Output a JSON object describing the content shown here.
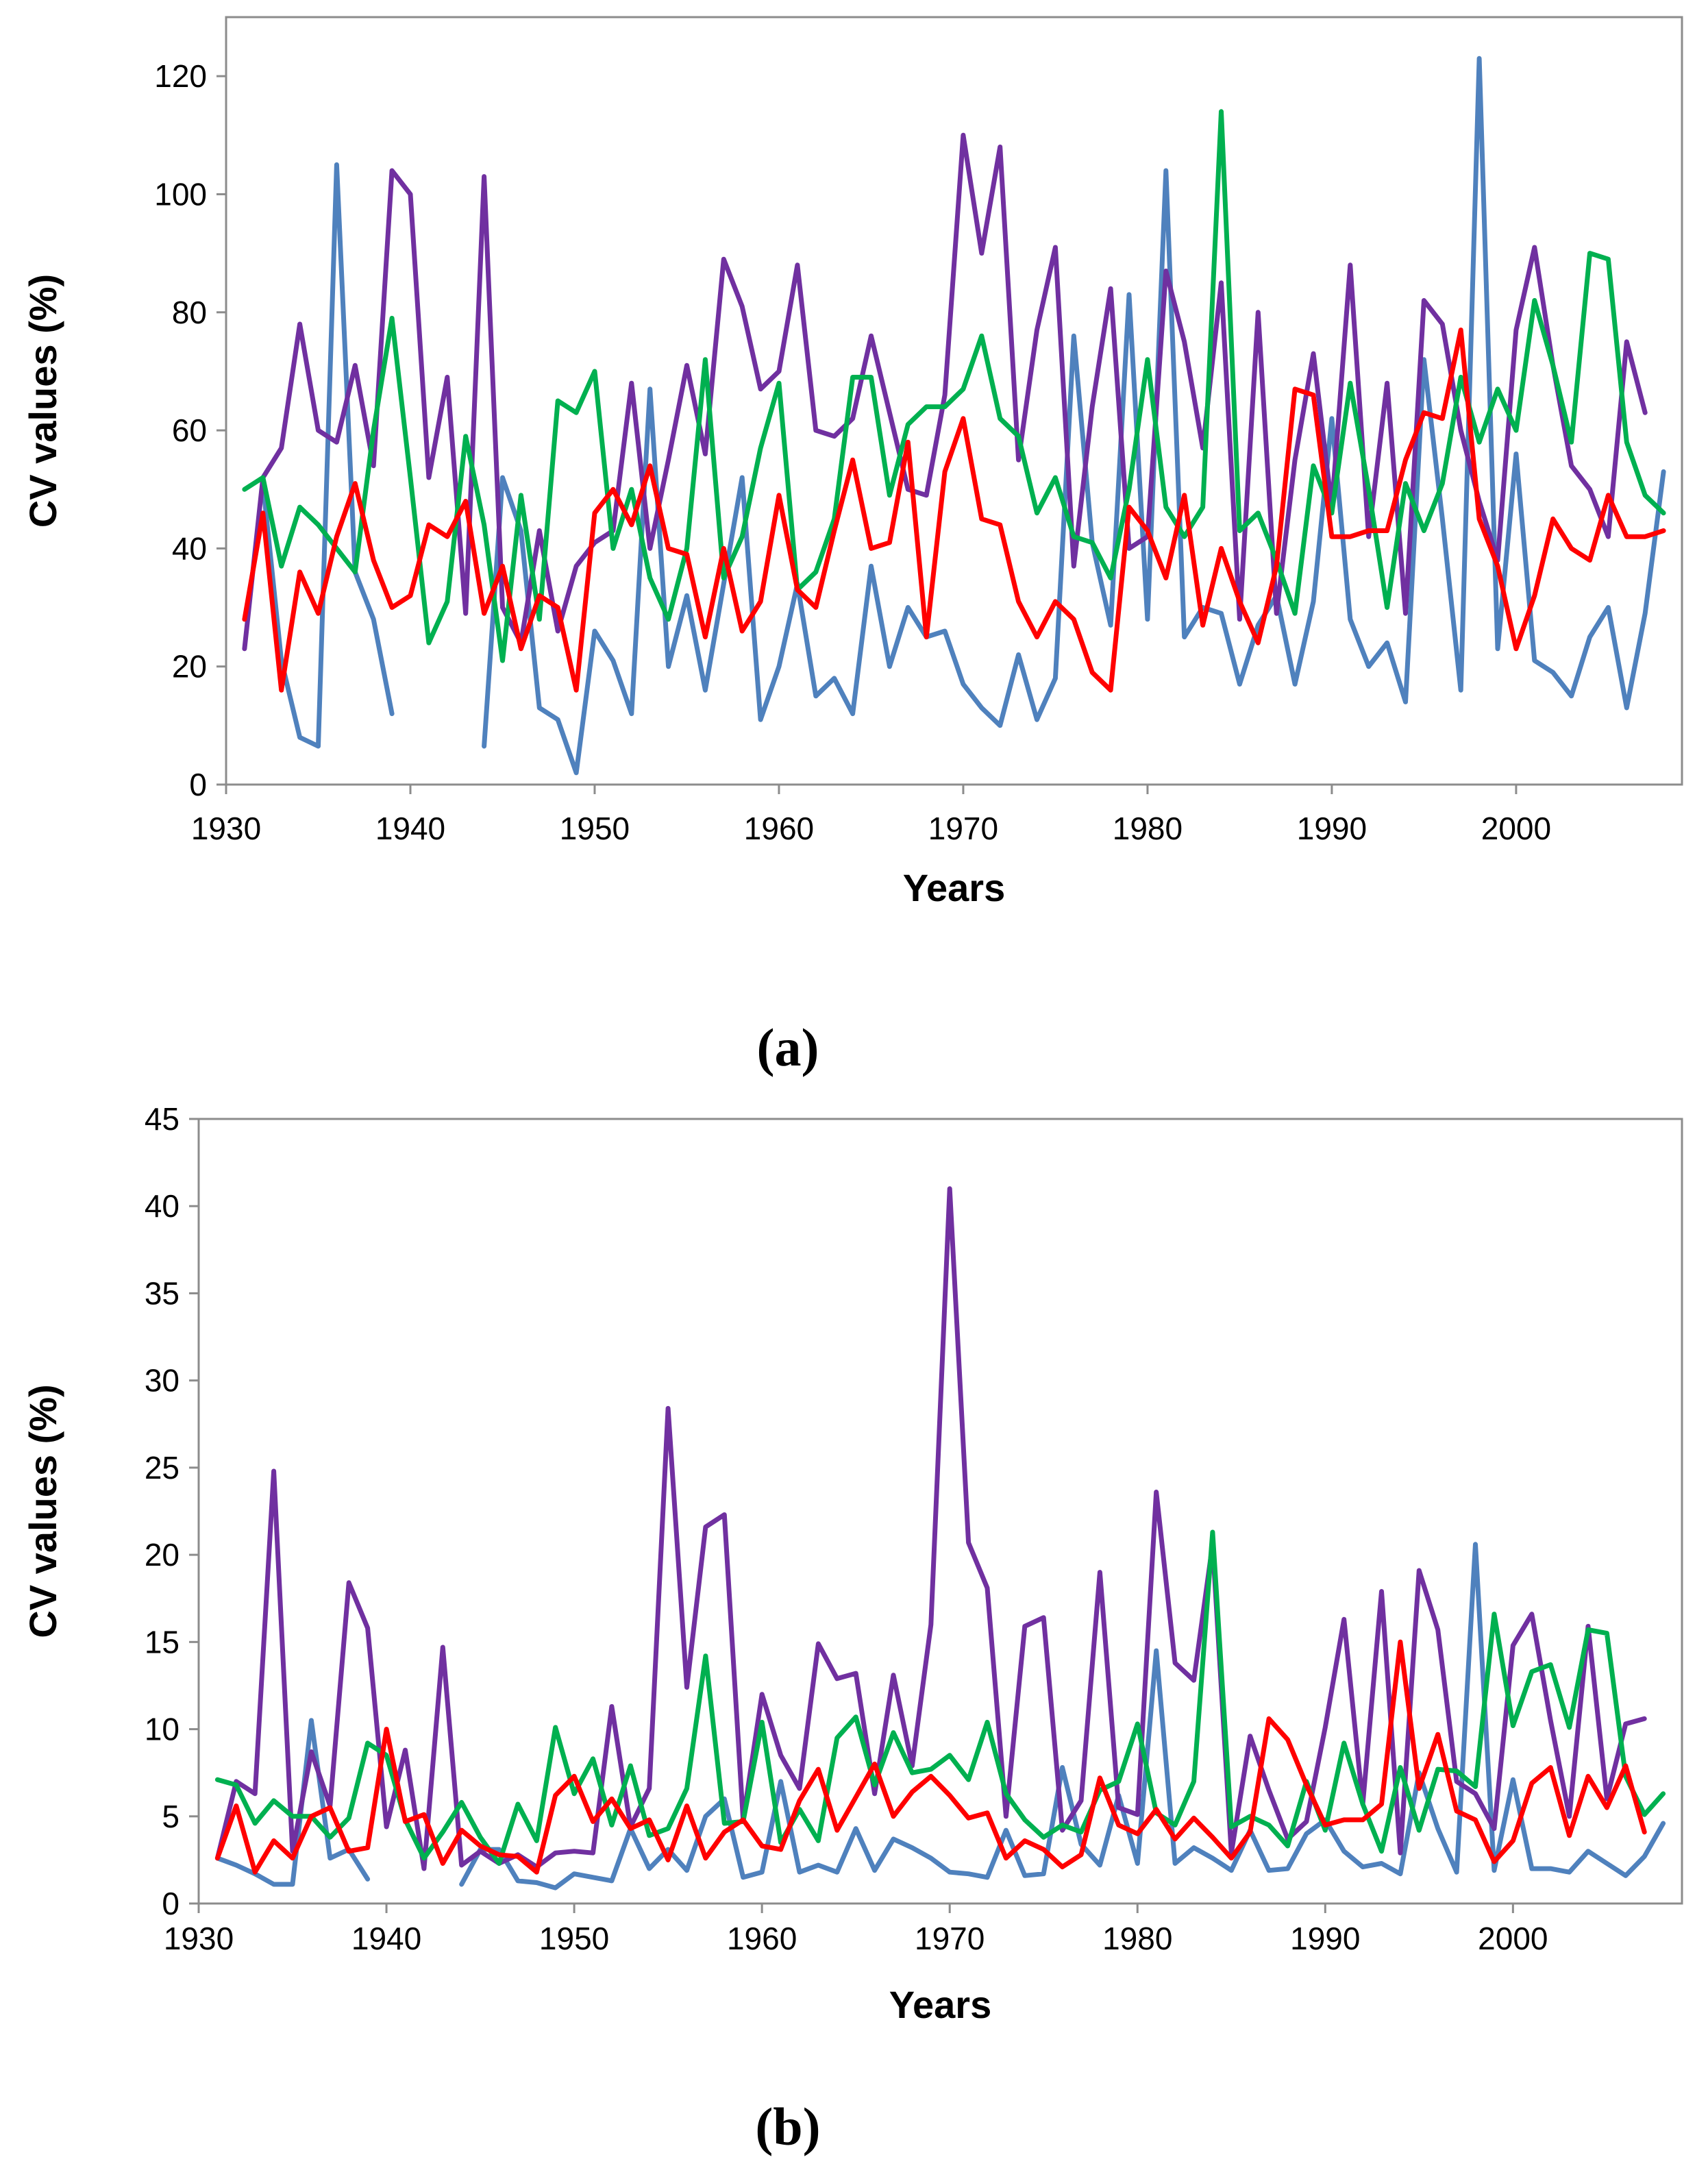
{
  "chart_data": [
    {
      "type": "line",
      "panel_label": "(a)",
      "xlabel": "Years",
      "ylabel": "CV values (%)",
      "xlim": [
        1930,
        2009
      ],
      "ylim": [
        0,
        130
      ],
      "x_ticks": [
        1930,
        1940,
        1950,
        1960,
        1970,
        1980,
        1990,
        2000
      ],
      "y_ticks": [
        0,
        20,
        40,
        60,
        80,
        100,
        120
      ],
      "x_start": 1931,
      "series": [
        {
          "name": "blue",
          "color": "#4f81bd",
          "values": [
            null,
            51,
            21,
            8,
            6.5,
            105,
            36,
            28,
            12,
            null,
            null,
            null,
            null,
            6.5,
            52,
            43,
            13,
            11,
            2,
            26,
            21,
            12,
            67,
            20,
            32,
            16,
            34,
            52,
            11,
            20,
            34,
            15,
            18,
            12,
            37,
            20,
            30,
            25,
            26,
            17,
            13,
            10,
            22,
            11,
            18,
            76,
            41,
            27,
            83,
            28,
            104,
            25,
            30,
            29,
            17,
            27,
            32,
            17,
            31,
            62,
            28,
            20,
            24,
            14,
            72,
            45,
            16,
            123,
            23,
            56,
            21,
            19,
            15,
            25,
            30,
            13,
            29,
            53
          ]
        },
        {
          "name": "purple",
          "color": "#7030a0",
          "values": [
            23,
            52,
            57,
            78,
            60,
            58,
            71,
            54,
            104,
            100,
            52,
            69,
            29,
            103,
            30,
            24,
            43,
            26,
            37,
            41,
            43,
            68,
            40,
            55,
            71,
            56,
            89,
            81,
            67,
            70,
            88,
            60,
            59,
            62,
            76,
            63,
            50,
            49,
            66,
            110,
            90,
            108,
            55,
            77,
            91,
            37,
            64,
            84,
            40,
            42,
            87,
            75,
            57,
            85,
            28,
            80,
            29,
            55,
            73,
            47,
            88,
            42,
            68,
            29,
            82,
            78,
            60,
            48,
            38,
            77,
            91,
            71,
            54,
            50,
            42,
            75,
            63
          ]
        },
        {
          "name": "green",
          "color": "#00b050",
          "values": [
            50,
            52,
            37,
            47,
            44,
            40,
            36,
            60,
            79,
            52,
            24,
            31,
            59,
            44,
            21,
            49,
            28,
            65,
            63,
            70,
            40,
            50,
            35,
            28,
            40,
            72,
            35,
            42,
            57,
            68,
            33,
            36,
            45,
            69,
            69,
            49,
            61,
            64,
            64,
            67,
            76,
            62,
            59,
            46,
            52,
            42,
            41,
            35,
            50,
            72,
            47,
            42,
            47,
            114,
            43,
            46,
            38,
            29,
            54,
            46,
            68,
            50,
            30,
            51,
            43,
            51,
            69,
            58,
            67,
            60,
            82,
            71,
            58,
            90,
            89,
            58,
            49,
            46
          ]
        },
        {
          "name": "red",
          "color": "#ff0000",
          "values": [
            28,
            46,
            16,
            36,
            29,
            42,
            51,
            38,
            30,
            32,
            44,
            42,
            48,
            29,
            37,
            23,
            32,
            30,
            16,
            46,
            50,
            44,
            54,
            40,
            39,
            25,
            40,
            26,
            31,
            49,
            33,
            30,
            43,
            55,
            40,
            41,
            58,
            25,
            53,
            62,
            45,
            44,
            31,
            25,
            31,
            28,
            19,
            16,
            47,
            43,
            35,
            49,
            27,
            40,
            31,
            24,
            37,
            67,
            66,
            42,
            42,
            43,
            43,
            55,
            63,
            62,
            77,
            45,
            37,
            23,
            32,
            45,
            40,
            38,
            49,
            42,
            42,
            43
          ]
        }
      ]
    },
    {
      "type": "line",
      "panel_label": "(b)",
      "xlabel": "Years",
      "ylabel": "CV values (%)",
      "xlim": [
        1930,
        2009
      ],
      "ylim": [
        0,
        45
      ],
      "x_ticks": [
        1930,
        1940,
        1950,
        1960,
        1970,
        1980,
        1990,
        2000
      ],
      "y_ticks": [
        0,
        5,
        10,
        15,
        20,
        25,
        30,
        35,
        40,
        45
      ],
      "x_start": 1931,
      "series": [
        {
          "name": "blue",
          "color": "#4f81bd",
          "values": [
            2.6,
            2.2,
            1.7,
            1.1,
            1.1,
            10.5,
            2.6,
            3.1,
            1.4,
            null,
            null,
            null,
            null,
            1.1,
            3.1,
            3.1,
            1.3,
            1.2,
            0.9,
            1.7,
            1.5,
            1.3,
            4.3,
            2,
            3.1,
            1.9,
            5,
            6,
            1.5,
            1.8,
            7,
            1.8,
            2.2,
            1.8,
            4.3,
            1.9,
            3.7,
            3.2,
            2.6,
            1.8,
            1.7,
            1.5,
            4.2,
            1.6,
            1.7,
            7.8,
            3.4,
            2.2,
            6.2,
            2.3,
            14.5,
            2.3,
            3.2,
            2.6,
            1.9,
            4.2,
            1.9,
            2,
            4,
            4.8,
            3,
            2.1,
            2.3,
            1.7,
            7.5,
            4.3,
            1.8,
            20.6,
            1.9,
            7.1,
            2,
            2,
            1.8,
            3,
            2.3,
            1.6,
            2.7,
            4.6
          ]
        },
        {
          "name": "purple",
          "color": "#7030a0",
          "values": [
            2.6,
            7,
            6.3,
            24.8,
            3,
            8.7,
            5.6,
            18.4,
            15.8,
            4.4,
            8.8,
            2,
            14.7,
            2.2,
            3,
            2.3,
            2.8,
            2.1,
            2.9,
            3,
            2.9,
            11.3,
            4.4,
            6.6,
            28.4,
            12.4,
            21.6,
            22.3,
            4.8,
            12,
            8.5,
            6.6,
            14.9,
            12.9,
            13.2,
            6.3,
            13.1,
            7.9,
            16,
            41,
            20.7,
            18.1,
            5,
            15.9,
            16.4,
            4.2,
            5.9,
            19,
            5.5,
            5.1,
            23.6,
            13.8,
            12.8,
            20.6,
            2.9,
            9.6,
            6.5,
            3.7,
            4.7,
            10.1,
            16.3,
            5.7,
            17.9,
            2.9,
            19.1,
            15.7,
            7,
            6.3,
            4.3,
            14.8,
            16.6,
            10.5,
            5,
            15.9,
            6,
            10.3,
            10.6
          ]
        },
        {
          "name": "green",
          "color": "#00b050",
          "values": [
            7.1,
            6.8,
            4.6,
            5.9,
            5,
            5,
            3.8,
            4.9,
            9.2,
            8.5,
            4.8,
            2.6,
            4.1,
            5.8,
            3.8,
            2.3,
            5.7,
            3.6,
            10.1,
            6.3,
            8.3,
            4.5,
            7.9,
            3.9,
            4.3,
            6.6,
            14.2,
            4.6,
            4.7,
            10.4,
            3.5,
            5.4,
            3.6,
            9.5,
            10.7,
            6.8,
            9.8,
            7.5,
            7.7,
            8.5,
            7.1,
            10.4,
            6.3,
            4.8,
            3.8,
            4.5,
            4.1,
            6.5,
            7,
            10.3,
            5.2,
            4.5,
            7,
            21.3,
            4.4,
            5,
            4.5,
            3.3,
            7,
            4.2,
            9.2,
            5.7,
            3,
            7.8,
            4.2,
            7.7,
            7.6,
            6.7,
            16.6,
            10.2,
            13.3,
            13.7,
            10.1,
            15.7,
            15.5,
            7.3,
            5.1,
            6.3
          ]
        },
        {
          "name": "red",
          "color": "#ff0000",
          "values": [
            2.6,
            5.6,
            1.8,
            3.6,
            2.6,
            5,
            5.5,
            3,
            3.2,
            10,
            4.7,
            5.1,
            2.3,
            4.2,
            3.3,
            2.8,
            2.7,
            1.8,
            6.2,
            7.3,
            4.7,
            6,
            4.3,
            4.8,
            2.5,
            5.6,
            2.6,
            4.1,
            4.8,
            3.3,
            3.1,
            5.9,
            7.7,
            4.2,
            6.1,
            8,
            5,
            6.4,
            7.3,
            6.2,
            4.9,
            5.2,
            2.6,
            3.6,
            3.1,
            2.1,
            2.8,
            7.2,
            4.5,
            4,
            5.4,
            3.7,
            4.9,
            3.8,
            2.6,
            4.1,
            10.6,
            9.4,
            6.8,
            4.5,
            4.8,
            4.8,
            5.7,
            15,
            6.6,
            9.7,
            5.3,
            4.8,
            2.4,
            3.6,
            6.9,
            7.8,
            3.9,
            7.3,
            5.5,
            7.9,
            4.1
          ]
        }
      ]
    }
  ]
}
